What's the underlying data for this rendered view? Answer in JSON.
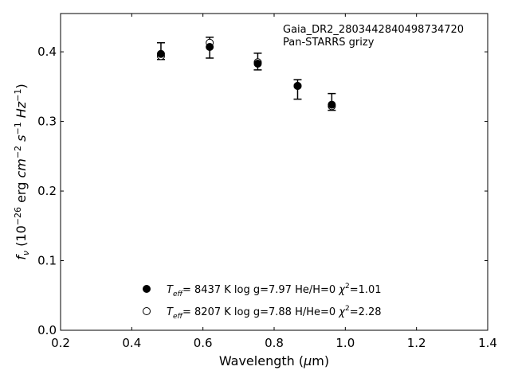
{
  "chart_data": {
    "type": "scatter",
    "xlabel": "Wavelength (μm)",
    "ylabel": "fν (10⁻²⁶ erg cm⁻² s⁻¹ Hz⁻¹)",
    "xlim": [
      0.2,
      1.4
    ],
    "ylim": [
      0.0,
      0.455
    ],
    "xticks": [
      0.2,
      0.4,
      0.6,
      0.8,
      1.0,
      1.2,
      1.4
    ],
    "xtick_labels": [
      "0.2",
      "0.4",
      "0.6",
      "0.8",
      "1.0",
      "1.2",
      "1.4"
    ],
    "yticks": [
      0.0,
      0.1,
      0.2,
      0.3,
      0.4
    ],
    "ytick_labels": [
      "0.0",
      "0.1",
      "0.2",
      "0.3",
      "0.4"
    ],
    "grid": false,
    "annotation": [
      "Gaia_DR2_2803442840498734720",
      "Pan-STARRS grizy"
    ],
    "observed": {
      "x": [
        0.482,
        0.619,
        0.754,
        0.866,
        0.962
      ],
      "y": [
        0.401,
        0.406,
        0.386,
        0.346,
        0.328
      ],
      "yerr": [
        0.012,
        0.015,
        0.012,
        0.014,
        0.012
      ]
    },
    "series": [
      {
        "name": "Teff= 8437 K log g=7.97 He/H=0 χ²=1.01",
        "marker": "filled-circle",
        "x": [
          0.482,
          0.619,
          0.754,
          0.866,
          0.962
        ],
        "y": [
          0.397,
          0.407,
          0.383,
          0.351,
          0.324
        ]
      },
      {
        "name": "Teff= 8207 K log g=7.88 H/He=0 χ²=2.28",
        "marker": "open-circle",
        "x": [
          0.482,
          0.619,
          0.754,
          0.866,
          0.962
        ],
        "y": [
          0.394,
          0.413,
          0.385,
          0.351,
          0.322
        ]
      }
    ],
    "legend": {
      "placement": "lower-center",
      "entries": [
        {
          "marker": "filled-circle",
          "teff": "8437 K",
          "logg": "log g=7.97",
          "comp": "He/H=0",
          "chi2": "=1.01"
        },
        {
          "marker": "open-circle",
          "teff": "8207 K",
          "logg": "log g=7.88",
          "comp": "H/He=0",
          "chi2": "=2.28"
        }
      ]
    }
  }
}
